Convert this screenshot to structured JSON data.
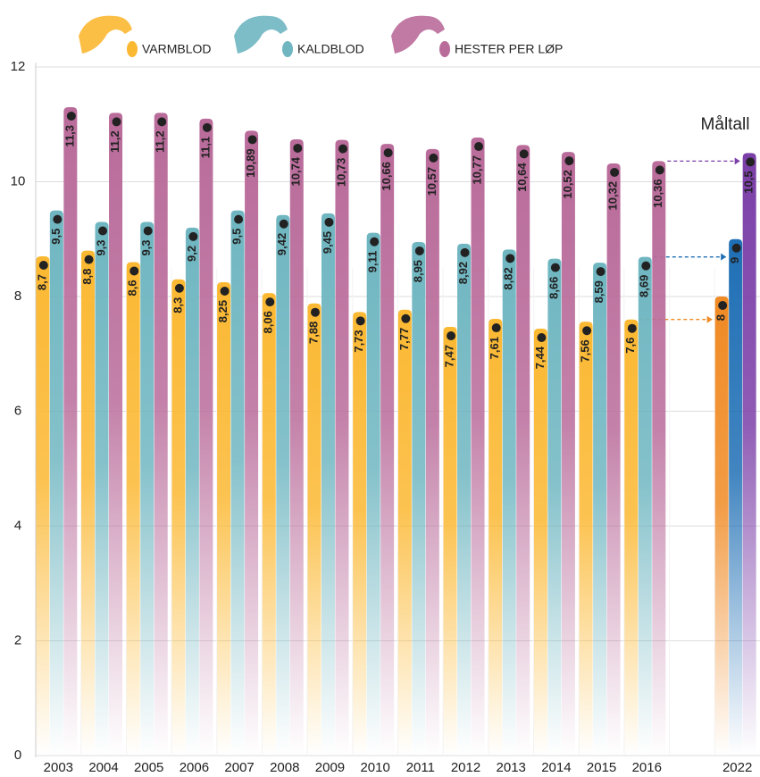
{
  "chart_data": {
    "type": "bar",
    "categories": [
      "2003",
      "2004",
      "2005",
      "2006",
      "2007",
      "2008",
      "2009",
      "2010",
      "2011",
      "2012",
      "2013",
      "2014",
      "2015",
      "2016",
      null,
      "2022"
    ],
    "series": [
      {
        "name": "VARMBLOD",
        "color": "#fbb832",
        "target_color": "#f08a24",
        "values": [
          8.7,
          8.8,
          8.6,
          8.3,
          8.25,
          8.06,
          7.88,
          7.73,
          7.77,
          7.47,
          7.61,
          7.44,
          7.56,
          7.6,
          null,
          8
        ],
        "value_labels": [
          "8,7",
          "8,8",
          "8,6",
          "8,3",
          "8,25",
          "8,06",
          "7,88",
          "7,73",
          "7,77",
          "7,47",
          "7,61",
          "7,44",
          "7,56",
          "7,6",
          null,
          "8"
        ]
      },
      {
        "name": "KALDBLOD",
        "color": "#6fb6c1",
        "target_color": "#1f6fb5",
        "values": [
          9.5,
          9.3,
          9.3,
          9.2,
          9.5,
          9.42,
          9.45,
          9.11,
          8.95,
          8.92,
          8.82,
          8.66,
          8.59,
          8.69,
          null,
          9
        ],
        "value_labels": [
          "9,5",
          "9,3",
          "9,3",
          "9,2",
          "9,5",
          "9,42",
          "9,45",
          "9,11",
          "8,95",
          "8,92",
          "8,82",
          "8,66",
          "8,59",
          "8,69",
          null,
          "9"
        ]
      },
      {
        "name": "HESTER PER LØP",
        "color": "#b96b9a",
        "target_color": "#7b3fa8",
        "values": [
          11.3,
          11.2,
          11.2,
          11.1,
          10.89,
          10.74,
          10.73,
          10.66,
          10.57,
          10.77,
          10.64,
          10.52,
          10.32,
          10.36,
          null,
          10.5
        ],
        "value_labels": [
          "11,3",
          "11,2",
          "11,2",
          "11,1",
          "10,89",
          "10,74",
          "10,73",
          "10,66",
          "10,57",
          "10,77",
          "10,64",
          "10,52",
          "10,32",
          "10,36",
          null,
          "10,5"
        ]
      }
    ],
    "annotation": "Måltall",
    "annotation_color": "#1f6fb5",
    "ylim": [
      0,
      12
    ],
    "yticks": [
      0,
      2,
      4,
      6,
      8,
      10,
      12
    ],
    "grid": true
  }
}
